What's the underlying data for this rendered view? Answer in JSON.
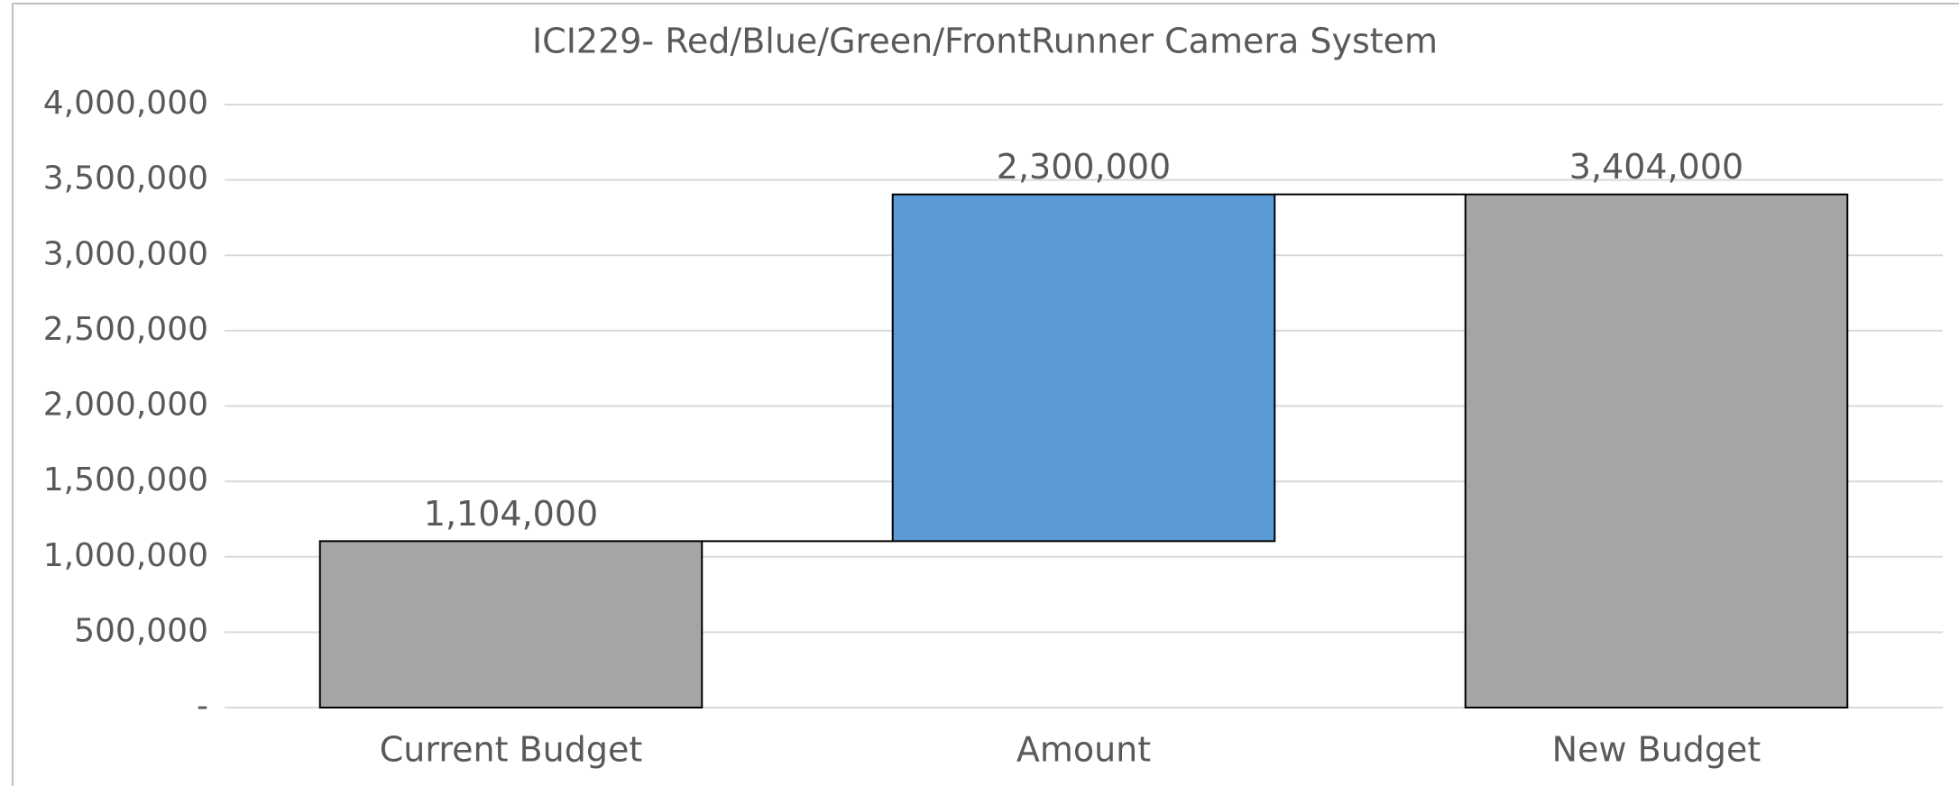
{
  "chart_data": {
    "type": "waterfall",
    "title": "ICI229- Red/Blue/Green/FrontRunner Camera System",
    "categories": [
      "Current Budget",
      "Amount",
      "New Budget"
    ],
    "values": [
      1104000,
      2300000,
      3404000
    ],
    "value_labels": [
      "1,104,000",
      "2,300,000",
      "3,404,000"
    ],
    "totals": [
      true,
      false,
      true
    ],
    "colors": [
      "#a5a5a5",
      "#5b9bd5",
      "#a5a5a5"
    ],
    "ylim": [
      0,
      4000000
    ],
    "yticks": [
      {
        "value": 0,
        "label": "-"
      },
      {
        "value": 500000,
        "label": "500,000"
      },
      {
        "value": 1000000,
        "label": "1,000,000"
      },
      {
        "value": 1500000,
        "label": "1,500,000"
      },
      {
        "value": 2000000,
        "label": "2,000,000"
      },
      {
        "value": 2500000,
        "label": "2,500,000"
      },
      {
        "value": 3000000,
        "label": "3,000,000"
      },
      {
        "value": 3500000,
        "label": "3,500,000"
      },
      {
        "value": 4000000,
        "label": "4,000,000"
      }
    ],
    "grid": true
  }
}
